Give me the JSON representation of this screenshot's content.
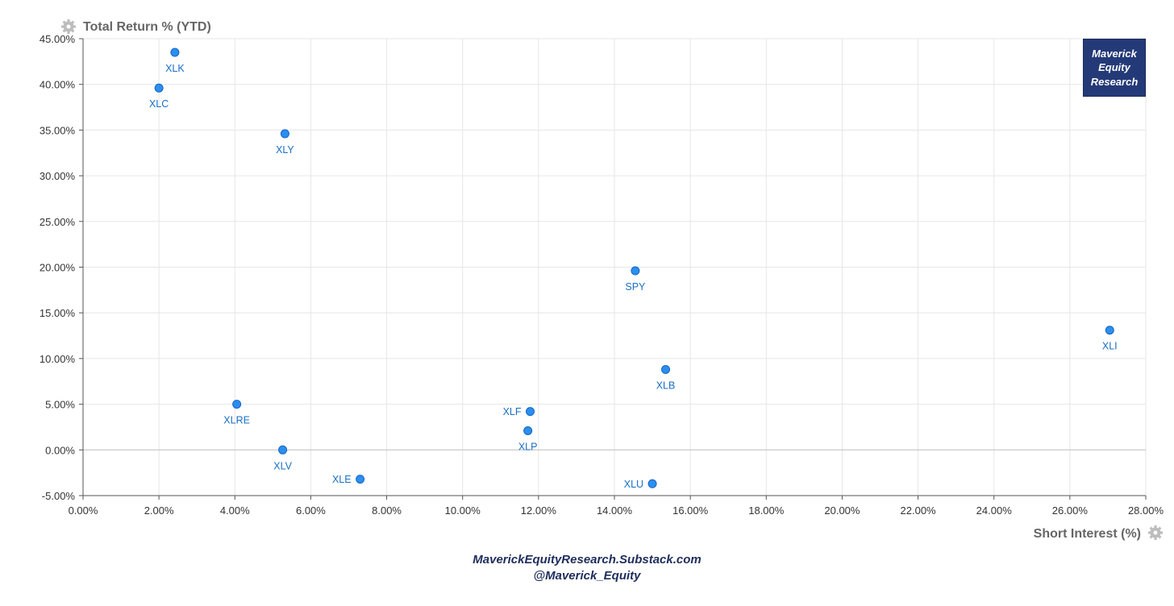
{
  "chart_data": {
    "type": "scatter",
    "ylabel": "Total Return % (YTD)",
    "xlabel": "Short Interest (%)",
    "xlim": [
      0,
      28
    ],
    "ylim": [
      -5,
      45
    ],
    "xticks": [
      "0.00%",
      "2.00%",
      "4.00%",
      "6.00%",
      "8.00%",
      "10.00%",
      "12.00%",
      "14.00%",
      "16.00%",
      "18.00%",
      "20.00%",
      "22.00%",
      "24.00%",
      "26.00%",
      "28.00%"
    ],
    "yticks": [
      "-5.00%",
      "0.00%",
      "5.00%",
      "10.00%",
      "15.00%",
      "20.00%",
      "25.00%",
      "30.00%",
      "35.00%",
      "40.00%",
      "45.00%"
    ],
    "grid": true,
    "marker_color": "#2b8ff0",
    "label_color": "#1a6fc4",
    "points": [
      {
        "label": "XLK",
        "x": 2.42,
        "y": 43.5,
        "label_pos": "below"
      },
      {
        "label": "XLC",
        "x": 2.0,
        "y": 39.6,
        "label_pos": "below"
      },
      {
        "label": "XLY",
        "x": 5.32,
        "y": 34.6,
        "label_pos": "below"
      },
      {
        "label": "SPY",
        "x": 14.55,
        "y": 19.6,
        "label_pos": "below"
      },
      {
        "label": "XLI",
        "x": 27.05,
        "y": 13.1,
        "label_pos": "below"
      },
      {
        "label": "XLB",
        "x": 15.35,
        "y": 8.8,
        "label_pos": "below"
      },
      {
        "label": "XLRE",
        "x": 4.05,
        "y": 5.0,
        "label_pos": "below"
      },
      {
        "label": "XLF",
        "x": 11.78,
        "y": 4.2,
        "label_pos": "left"
      },
      {
        "label": "XLP",
        "x": 11.72,
        "y": 2.1,
        "label_pos": "below"
      },
      {
        "label": "XLV",
        "x": 5.26,
        "y": 0.0,
        "label_pos": "below"
      },
      {
        "label": "XLE",
        "x": 7.3,
        "y": -3.2,
        "label_pos": "left"
      },
      {
        "label": "XLU",
        "x": 15.0,
        "y": -3.7,
        "label_pos": "left"
      }
    ]
  },
  "badge": {
    "line1": "Maverick",
    "line2": "Equity",
    "line3": "Research"
  },
  "footer": {
    "line1": "MaverickEquityResearch.Substack.com",
    "line2": "@Maverick_Equity"
  },
  "colors": {
    "grid": "#e6e6e6",
    "axis": "#555555",
    "badge_bg": "#243a78"
  },
  "icons": {
    "y_axis_icon": "gear-icon",
    "x_axis_icon": "gear-icon"
  }
}
